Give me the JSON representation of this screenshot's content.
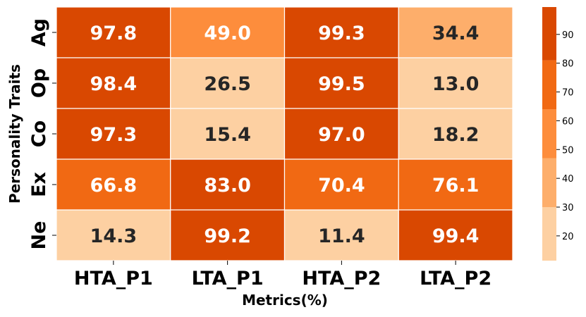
{
  "chart_data": {
    "type": "heatmap",
    "xlabel": "Metrics(%)",
    "ylabel": "Personality Traits",
    "x_categories": [
      "HTA_P1",
      "LTA_P1",
      "HTA_P2",
      "LTA_P2"
    ],
    "y_categories": [
      "Ag",
      "Op",
      "Co",
      "Ex",
      "Ne"
    ],
    "values": [
      [
        97.8,
        49.0,
        99.3,
        34.4
      ],
      [
        98.4,
        26.5,
        99.5,
        13.0
      ],
      [
        97.3,
        15.4,
        97.0,
        18.2
      ],
      [
        66.8,
        83.0,
        70.4,
        76.1
      ],
      [
        14.3,
        99.2,
        11.4,
        99.4
      ]
    ],
    "value_range": [
      11.4,
      99.5
    ],
    "colorbar": {
      "ticks": [
        20,
        30,
        40,
        50,
        60,
        70,
        80,
        90
      ],
      "bins": [
        {
          "from": 11.4,
          "to": 30,
          "color": "#fdd0a2"
        },
        {
          "from": 30,
          "to": 47,
          "color": "#fdae6b"
        },
        {
          "from": 47,
          "to": 64,
          "color": "#fd8d3c"
        },
        {
          "from": 64,
          "to": 81,
          "color": "#f16913"
        },
        {
          "from": 81,
          "to": 99.5,
          "color": "#d94801"
        }
      ]
    },
    "label_colors": {
      "dark": "#262626",
      "light": "#ffffff"
    },
    "grid": false
  }
}
